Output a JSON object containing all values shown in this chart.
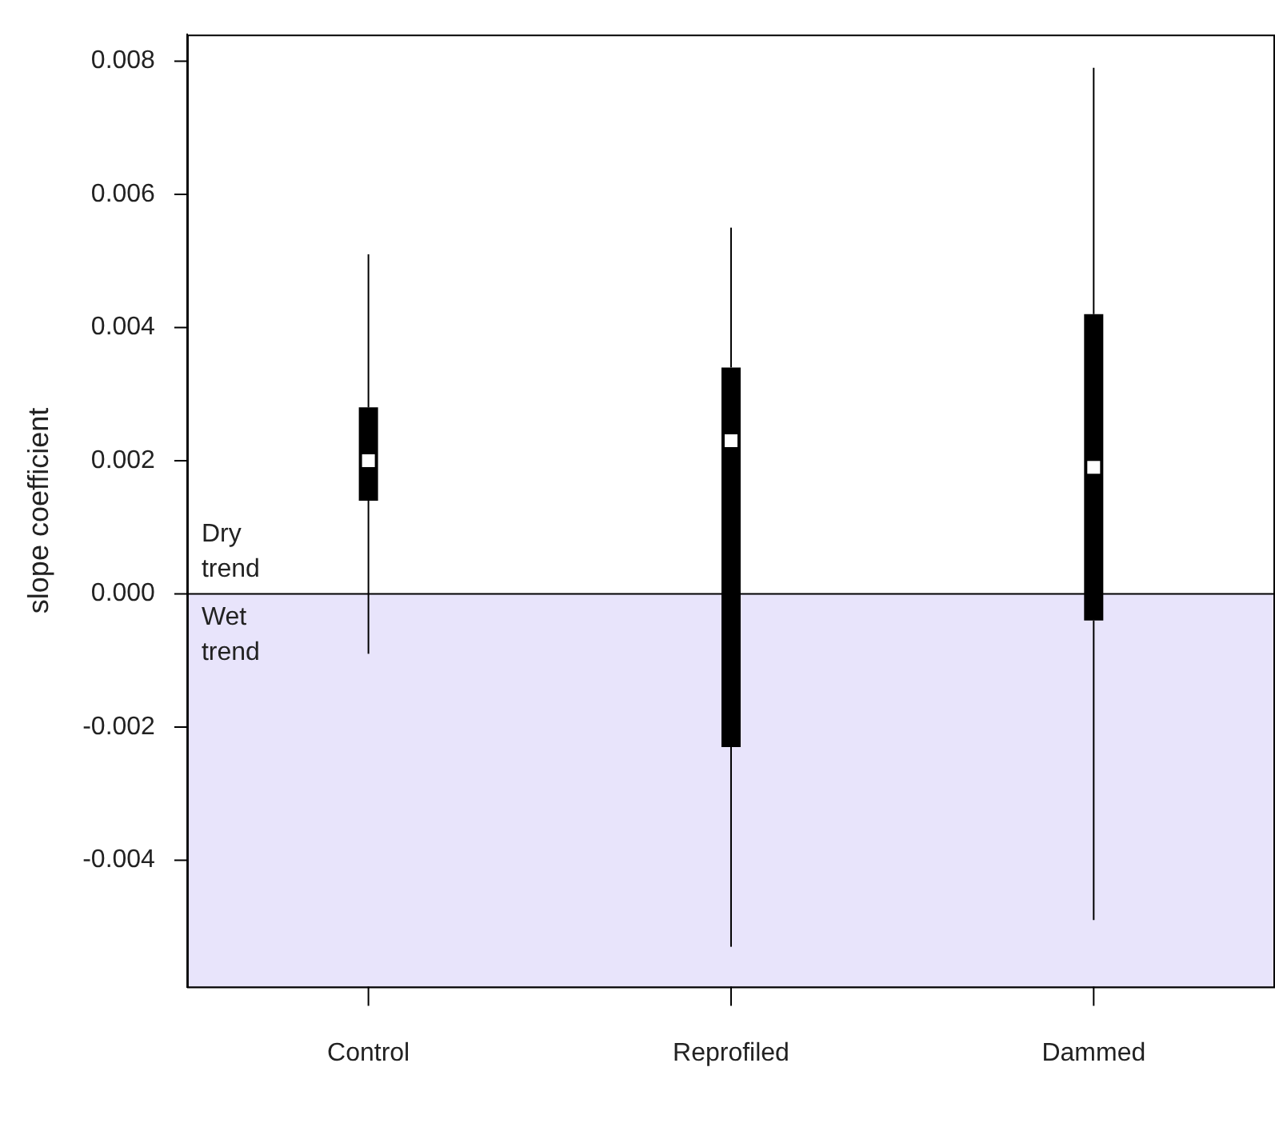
{
  "chart_data": {
    "type": "box",
    "ylabel": "slope coefficient",
    "categories": [
      "Control",
      "Reprofiled",
      "Dammed"
    ],
    "color": "#000000",
    "boxes": [
      {
        "low": -0.0009,
        "q1": 0.0014,
        "median": 0.002,
        "q3": 0.0028,
        "high": 0.0051
      },
      {
        "low": -0.0053,
        "q1": -0.0023,
        "median": 0.0023,
        "q3": 0.0034,
        "high": 0.0055
      },
      {
        "low": -0.0049,
        "q1": -0.0004,
        "median": 0.0019,
        "q3": 0.0042,
        "high": 0.0079
      }
    ],
    "ylim": [
      -0.0059,
      0.0084
    ],
    "yticks": [
      {
        "value": -0.004,
        "label": "-0.004"
      },
      {
        "value": -0.002,
        "label": "-0.002"
      },
      {
        "value": 0,
        "label": "0.000"
      },
      {
        "value": 0.002,
        "label": "0.002"
      },
      {
        "value": 0.004,
        "label": "0.004"
      },
      {
        "value": 0.006,
        "label": "0.006"
      },
      {
        "value": 0.008,
        "label": "0.008"
      }
    ],
    "ref_lines": [
      {
        "axis": "y",
        "value": 0,
        "color": "#000000"
      }
    ],
    "bands": [
      {
        "axis": "y",
        "from": -0.0059,
        "to": 0,
        "color": "#e8e4fb"
      }
    ],
    "annotations": [
      "Dry trend",
      "Wet trend"
    ],
    "grid": false,
    "legend": false
  }
}
